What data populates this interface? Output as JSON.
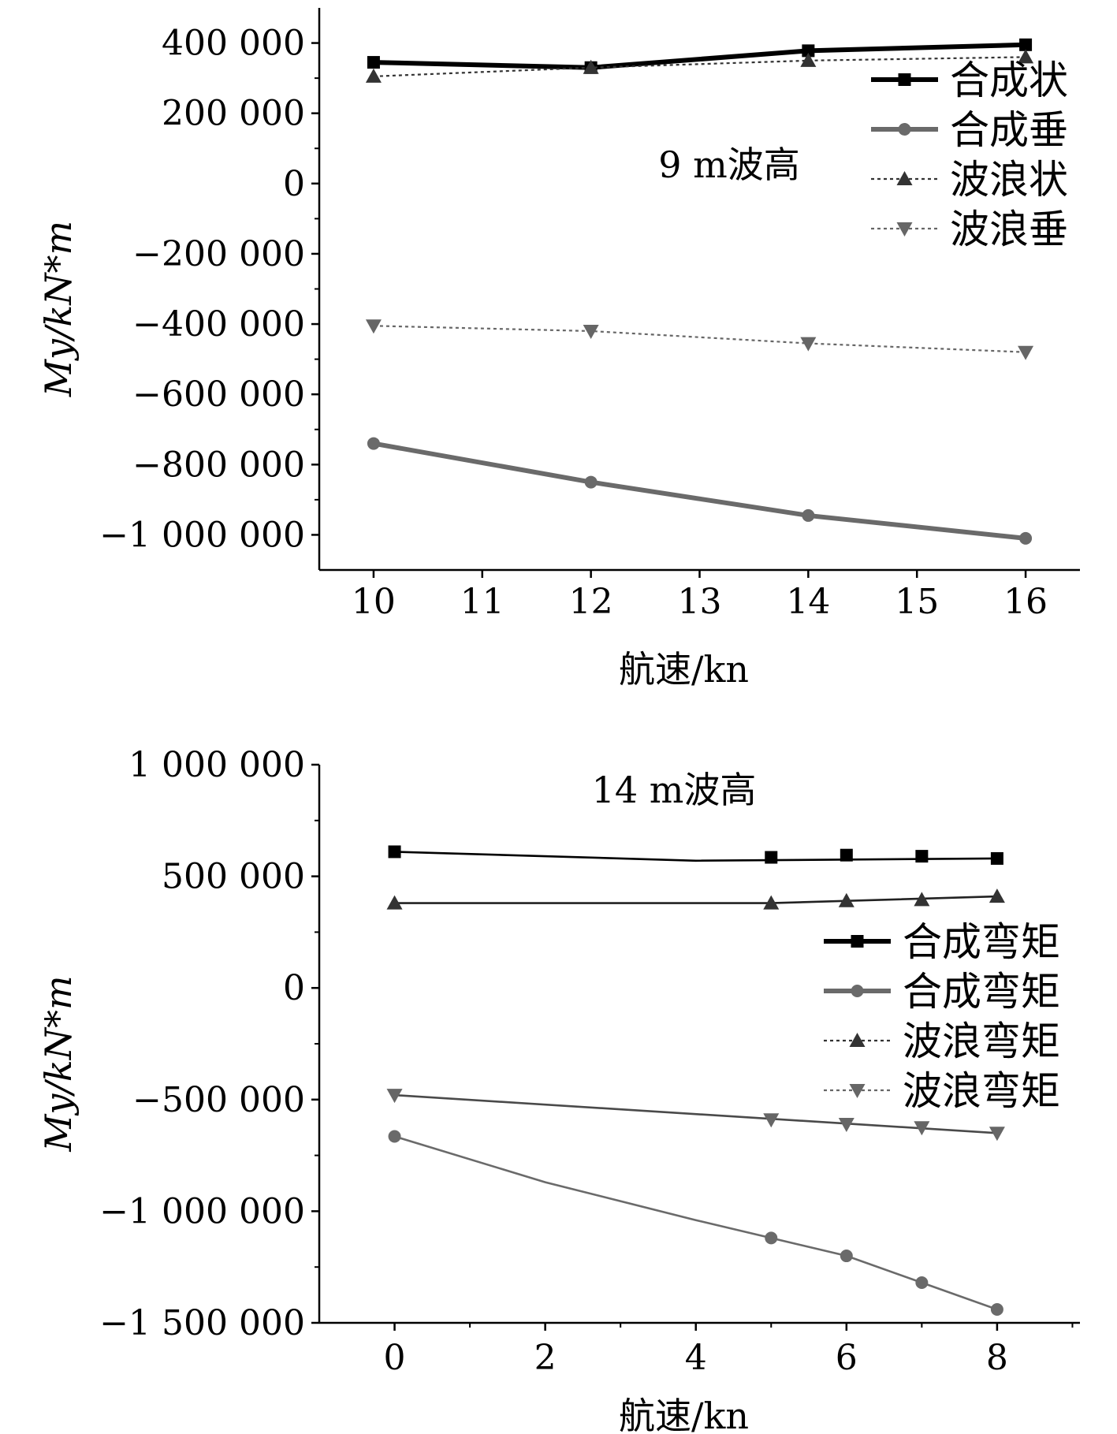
{
  "chart_data": [
    {
      "type": "line",
      "annotation": "9 m波高",
      "xlabel": "航速/kn",
      "ylabel": "My/kN*m",
      "xlim": [
        9.5,
        16.5
      ],
      "ylim": [
        -1100000,
        500000
      ],
      "xticks": [
        10,
        11,
        12,
        13,
        14,
        15,
        16
      ],
      "xtick_labels": [
        "10",
        "11",
        "12",
        "13",
        "14",
        "15",
        "16"
      ],
      "yticks": [
        400000,
        200000,
        0,
        -200000,
        -400000,
        -600000,
        -800000,
        -1000000
      ],
      "ytick_labels": [
        "400 000",
        "200 000",
        "0",
        "−200 000",
        "−400 000",
        "−600 000",
        "−800 000",
        "−1 000 000"
      ],
      "legend_position": "top-right",
      "grid": false,
      "series": [
        {
          "name": "合成状",
          "color": "#000000",
          "style": "solid-thick",
          "marker": "square",
          "x": [
            10,
            12,
            14,
            16
          ],
          "y": [
            345000,
            330000,
            378000,
            395000
          ]
        },
        {
          "name": "合成垂",
          "color": "#6a6a6a",
          "style": "solid-thick",
          "marker": "circle",
          "x": [
            10,
            12,
            14,
            16
          ],
          "y": [
            -740000,
            -850000,
            -945000,
            -1010000
          ]
        },
        {
          "name": "波浪状",
          "color": "#333333",
          "style": "dotted",
          "marker": "triangle-up",
          "x": [
            10,
            12,
            14,
            16
          ],
          "y": [
            305000,
            330000,
            350000,
            360000
          ]
        },
        {
          "name": "波浪垂",
          "color": "#666666",
          "style": "dotted",
          "marker": "triangle-down",
          "x": [
            10,
            12,
            14,
            16
          ],
          "y": [
            -405000,
            -420000,
            -455000,
            -480000
          ]
        }
      ]
    },
    {
      "type": "line",
      "annotation": "14 m波高",
      "xlabel": "航速/kn",
      "ylabel": "My/kN*m",
      "xlim": [
        -1,
        9.1
      ],
      "ylim": [
        -1500000,
        1000000
      ],
      "xticks": [
        0,
        2,
        4,
        6,
        8
      ],
      "xtick_labels": [
        "0",
        "2",
        "4",
        "6",
        "8"
      ],
      "yticks": [
        1000000,
        500000,
        0,
        -500000,
        -1000000,
        -1500000
      ],
      "ytick_labels": [
        "1 000 000",
        "500 000",
        "0",
        "−500 000",
        "−1 000 000",
        "−1 500 000"
      ],
      "legend_position": "center-right",
      "grid": false,
      "series": [
        {
          "name": "合成弯矩",
          "color": "#000000",
          "style": "solid-thick",
          "marker": "square",
          "x": [
            0,
            5,
            6,
            7,
            8
          ],
          "y": [
            610000,
            585000,
            595000,
            590000,
            580000
          ]
        },
        {
          "name": "合成弯矩",
          "color": "#6a6a6a",
          "style": "solid-thick",
          "marker": "circle",
          "x": [
            0,
            5,
            6,
            7,
            8
          ],
          "y": [
            -665000,
            -1120000,
            -1200000,
            -1320000,
            -1440000
          ]
        },
        {
          "name": "波浪弯矩",
          "color": "#333333",
          "style": "dotted",
          "marker": "triangle-up",
          "x": [
            0,
            5,
            6,
            7,
            8
          ],
          "y": [
            380000,
            380000,
            390000,
            395000,
            410000
          ]
        },
        {
          "name": "波浪弯矩",
          "color": "#666666",
          "style": "dotted",
          "marker": "triangle-down",
          "x": [
            0,
            5,
            6,
            7,
            8
          ],
          "y": [
            -480000,
            -590000,
            -610000,
            -625000,
            -650000
          ]
        }
      ],
      "drawn_lines": [
        {
          "color": "#000000",
          "x": [
            0,
            4,
            8
          ],
          "y": [
            610000,
            570000,
            580000
          ]
        },
        {
          "color": "#222222",
          "x": [
            0,
            5,
            8
          ],
          "y": [
            380000,
            380000,
            410000
          ]
        },
        {
          "color": "#4a4a4a",
          "x": [
            0,
            8
          ],
          "y": [
            -480000,
            -650000
          ]
        },
        {
          "color": "#6a6a6a",
          "x": [
            0,
            2,
            4,
            5,
            6,
            7,
            8
          ],
          "y": [
            -665000,
            -870000,
            -1040000,
            -1120000,
            -1200000,
            -1320000,
            -1440000
          ]
        }
      ]
    }
  ]
}
